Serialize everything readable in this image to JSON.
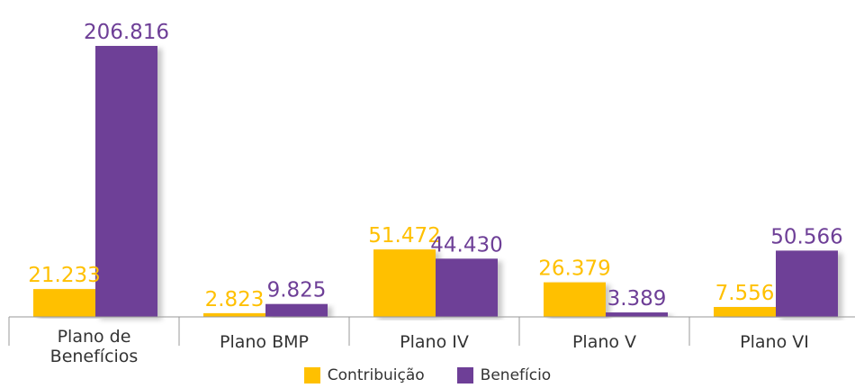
{
  "colors": {
    "contribuicao": "#FFC000",
    "beneficio": "#6E3F97",
    "axis": "#999999",
    "category_text": "#333333"
  },
  "chart_data": {
    "type": "bar",
    "categories": [
      [
        "Plano de",
        "Benefícios"
      ],
      [
        "Plano BMP"
      ],
      [
        "Plano IV"
      ],
      [
        "Plano V"
      ],
      [
        "Plano VI"
      ]
    ],
    "series": [
      {
        "name": "Contribuição",
        "values": [
          21.233,
          2.823,
          51.472,
          26.379,
          7.556
        ],
        "labels": [
          "21.233",
          "2.823",
          "51.472",
          "26.379",
          "7.556"
        ]
      },
      {
        "name": "Benefício",
        "values": [
          206.816,
          9.825,
          44.43,
          3.389,
          50.566
        ],
        "labels": [
          "206.816",
          "9.825",
          "44.430",
          "3.389",
          "50.566"
        ]
      }
    ],
    "ylim": [
      0,
      206.816
    ],
    "grid": false,
    "legend_position": "bottom"
  },
  "legend": {
    "contribuicao_label": "Contribuição",
    "beneficio_label": "Benefício"
  }
}
